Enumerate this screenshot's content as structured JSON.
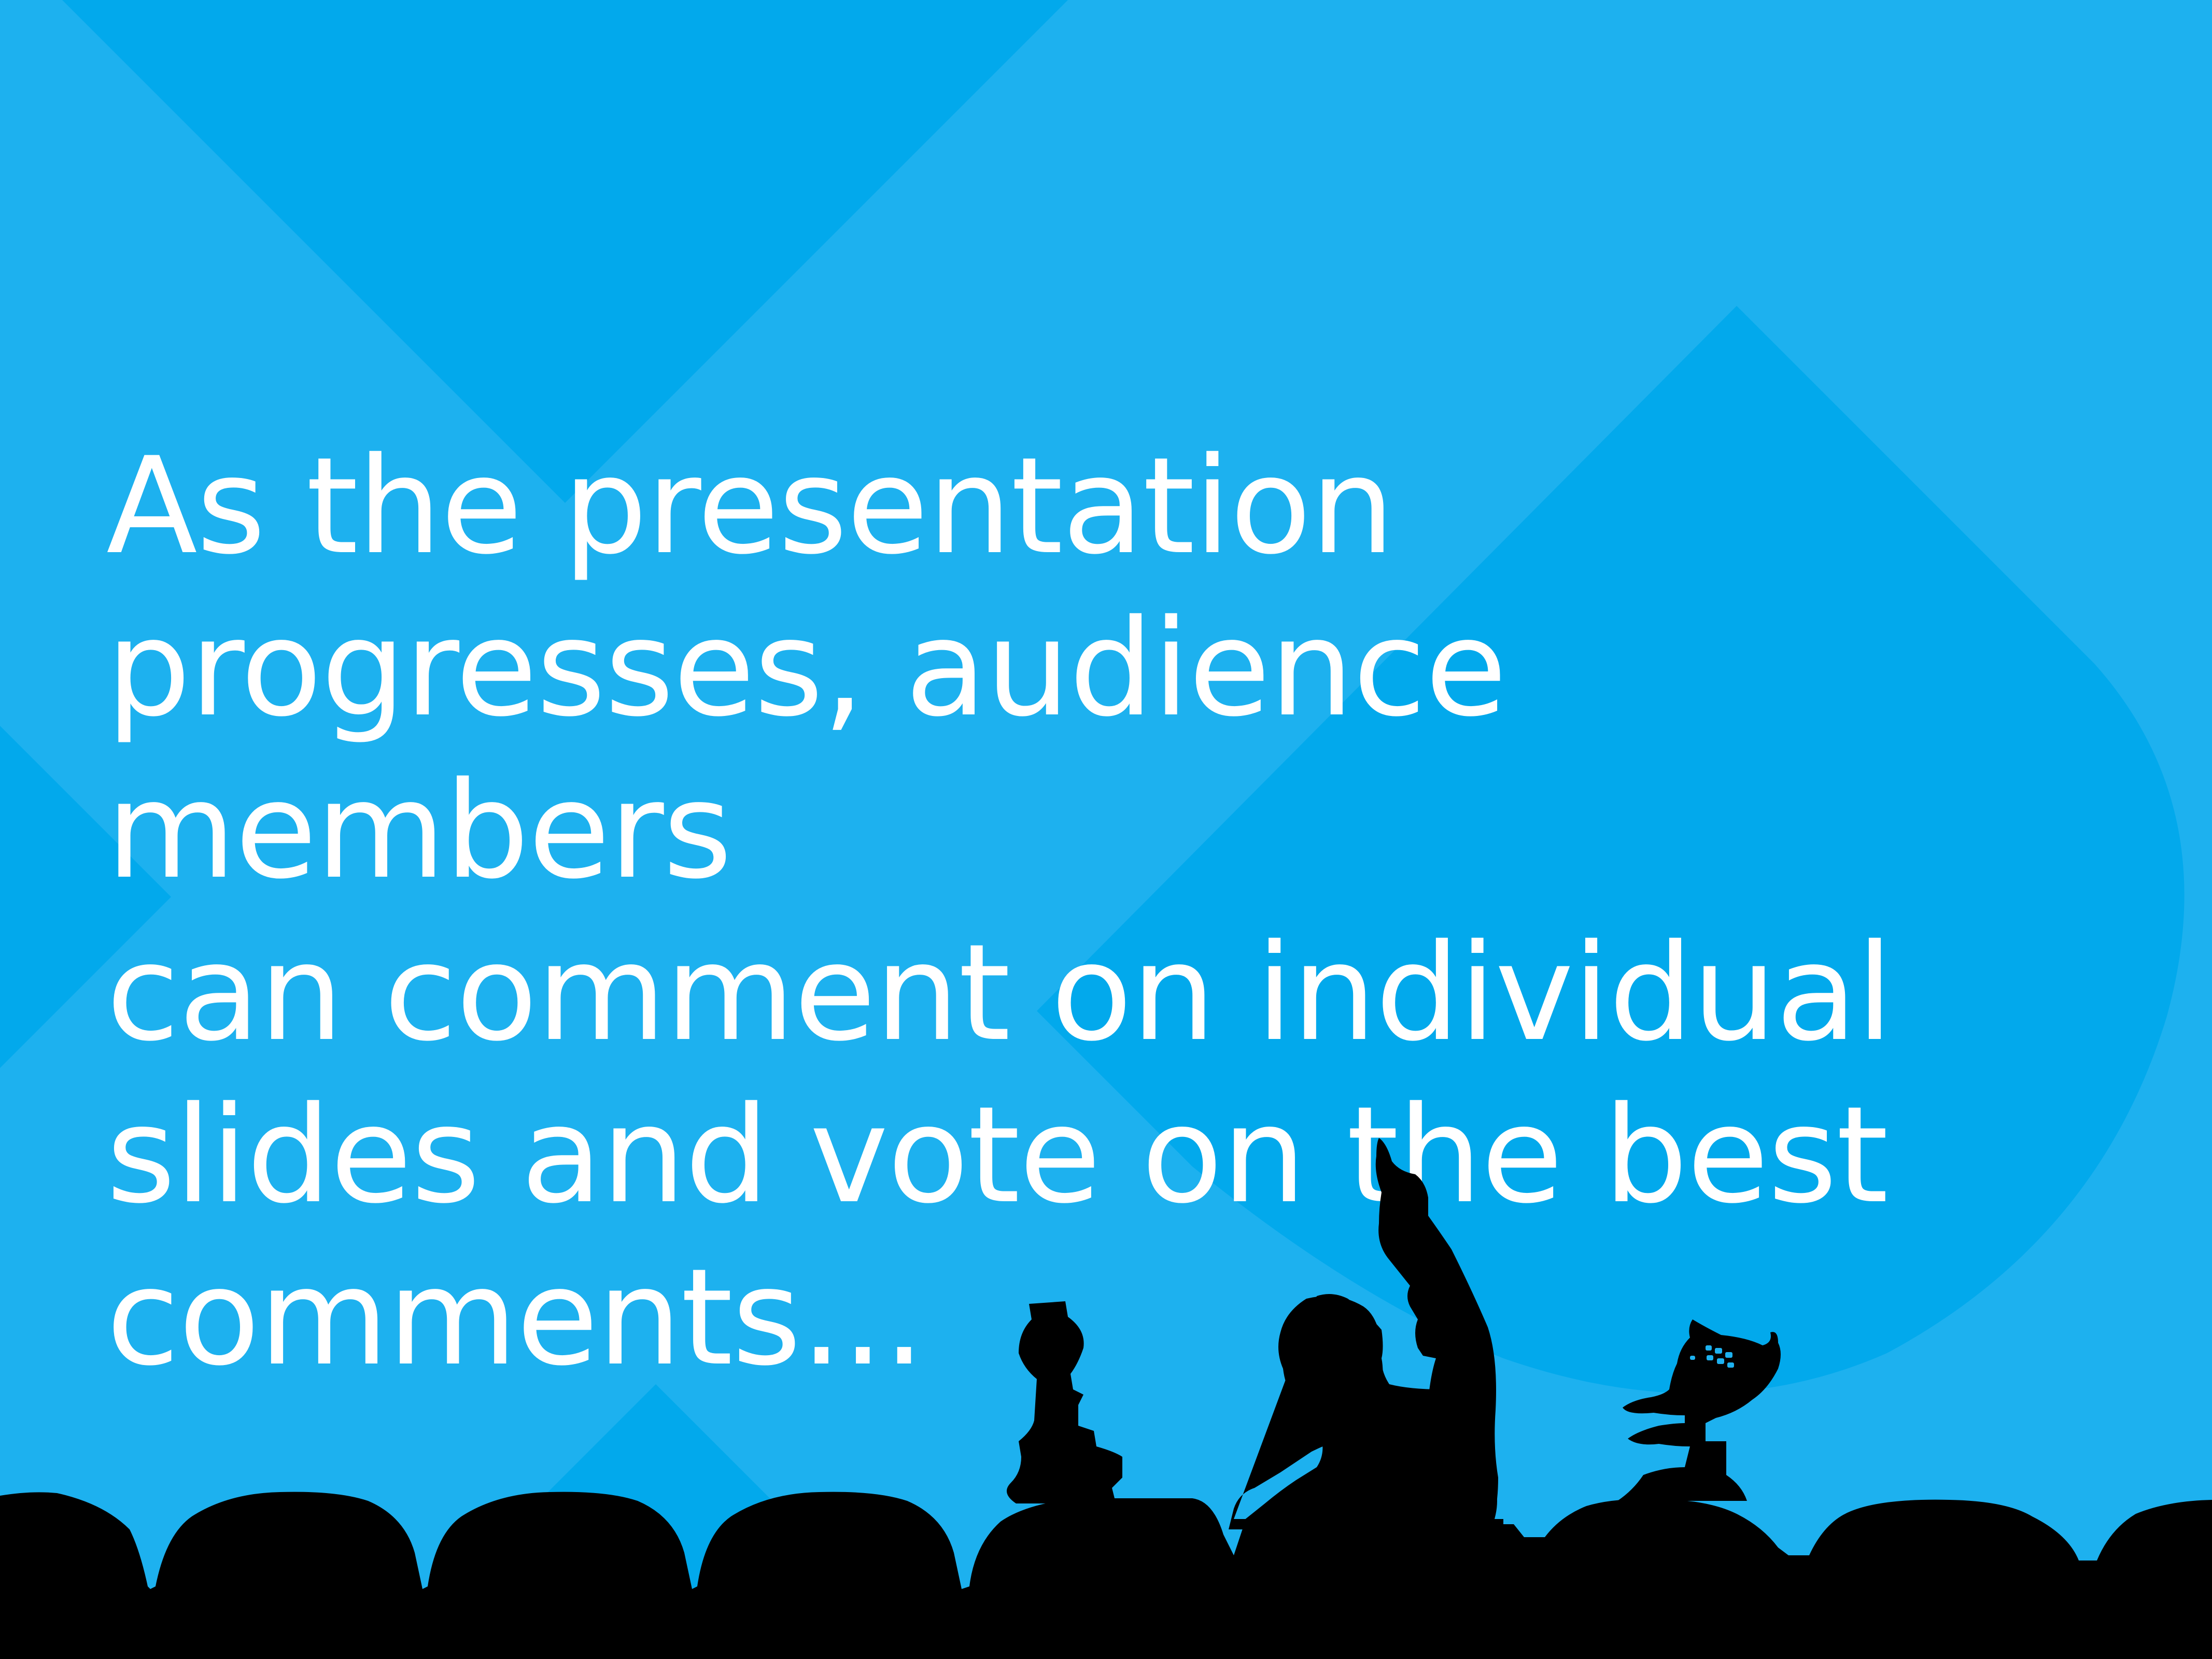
{
  "slide": {
    "caption_lines": [
      "As the presentation",
      "progresses, audience members",
      "can comment on individual",
      "slides and vote on the best",
      "comments..."
    ]
  },
  "colors": {
    "background": "#1db1ef",
    "background_dark": "#02a9ec",
    "text": "#ffffff",
    "silhouette": "#000000"
  },
  "illustration": {
    "name": "theater-silhouette",
    "elements": [
      "theater-seat-row",
      "robot-crow-silhouette",
      "person-pointing-silhouette",
      "robot-servo-silhouette"
    ]
  }
}
